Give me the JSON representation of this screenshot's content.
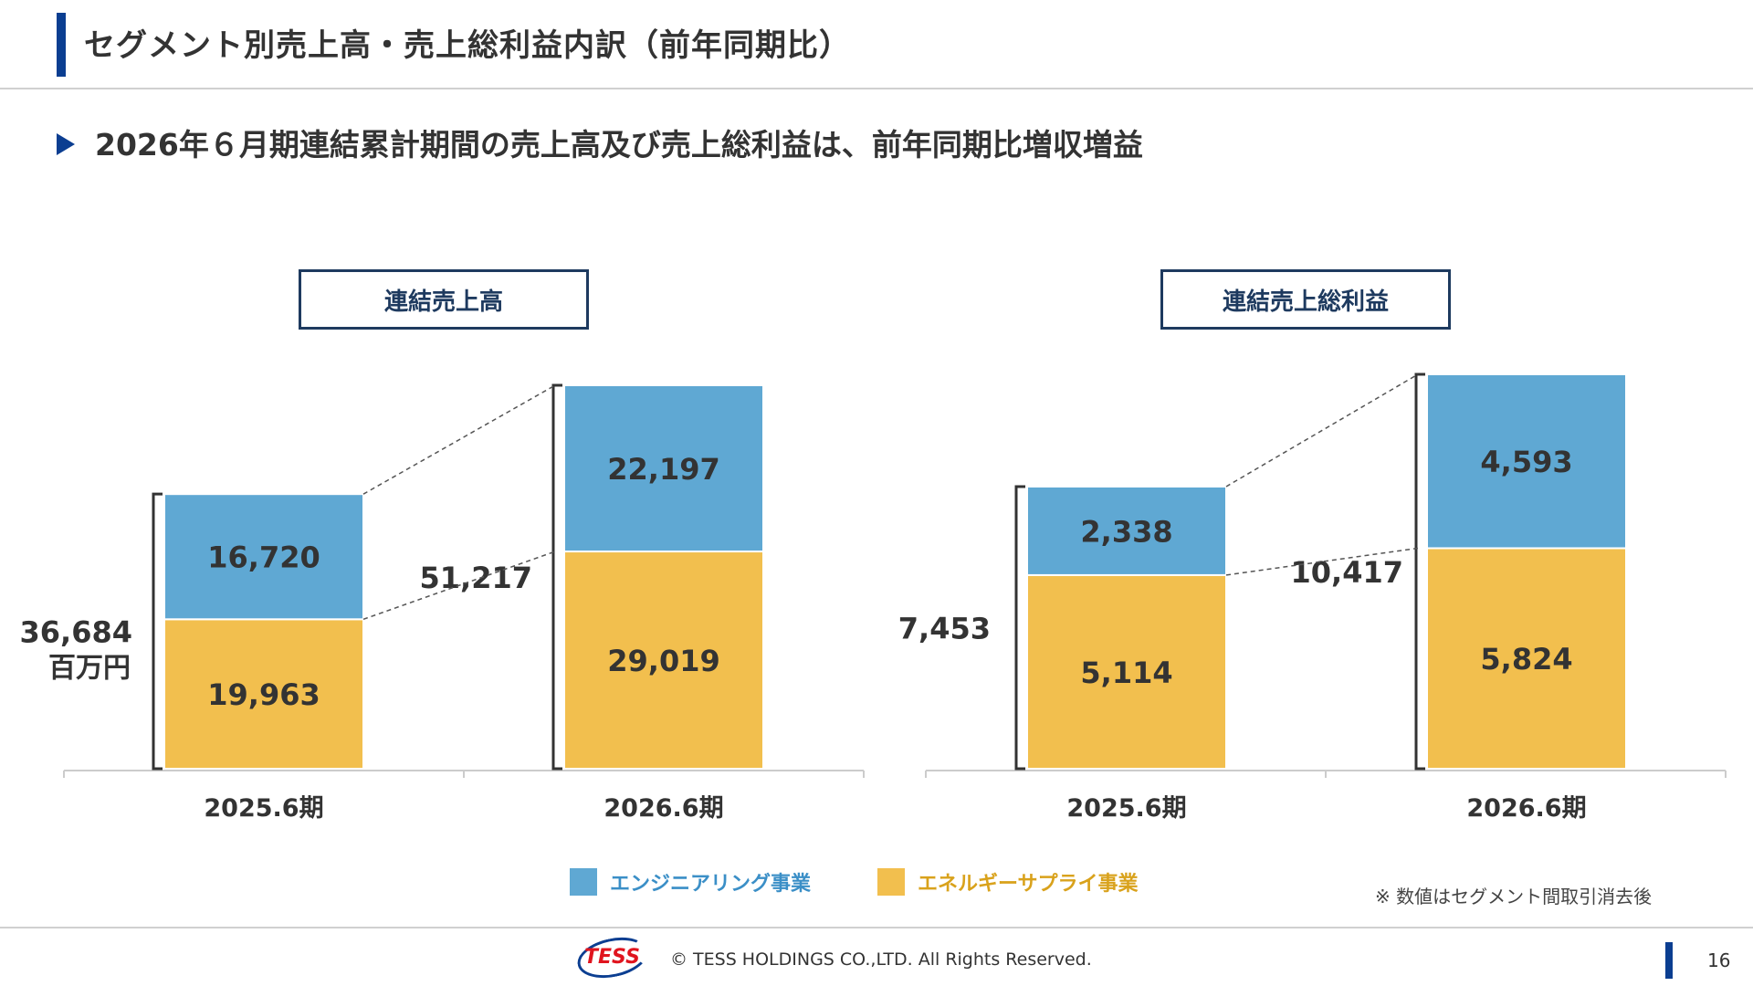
{
  "header": {
    "title": "セグメント別売上高・売上総利益内訳（前年同期比）",
    "headline": "2026年６月期連結累計期間の売上高及び売上総利益は、前年同期比増収増益"
  },
  "colors": {
    "engineering": "#5fa8d3",
    "energy": "#f2bf4e",
    "navy": "#0b3e91",
    "legend_engineering_text": "#3b8fc7",
    "legend_energy_text": "#d9a21c"
  },
  "chart_data": [
    {
      "type": "bar",
      "stacked": true,
      "title": "連結売上高",
      "categories": [
        "2025.6期",
        "2026.6期"
      ],
      "series": [
        {
          "name": "エネルギーサプライ事業",
          "values": [
            19963,
            29019
          ],
          "labels": [
            "19,963",
            "29,019"
          ]
        },
        {
          "name": "エンジニアリング事業",
          "values": [
            16720,
            22197
          ],
          "labels": [
            "16,720",
            "22,197"
          ]
        }
      ],
      "totals": [
        36684,
        51217
      ],
      "total_labels": [
        "36,684",
        "51,217"
      ],
      "unit_label": "百万円"
    },
    {
      "type": "bar",
      "stacked": true,
      "title": "連結売上総利益",
      "categories": [
        "2025.6期",
        "2026.6期"
      ],
      "series": [
        {
          "name": "エネルギーサプライ事業",
          "values": [
            5114,
            5824
          ],
          "labels": [
            "5,114",
            "5,824"
          ]
        },
        {
          "name": "エンジニアリング事業",
          "values": [
            2338,
            4593
          ],
          "labels": [
            "2,338",
            "4,593"
          ]
        }
      ],
      "totals": [
        7453,
        10417
      ],
      "total_labels": [
        "7,453",
        "10,417"
      ]
    }
  ],
  "legend": {
    "engineering": "エンジニアリング事業",
    "energy": "エネルギーサプライ事業"
  },
  "note": "※ 数値はセグメント間取引消去後",
  "footer": {
    "logo": "TESS",
    "copyright": "© TESS HOLDINGS CO.,LTD. All Rights Reserved.",
    "page": "16"
  }
}
